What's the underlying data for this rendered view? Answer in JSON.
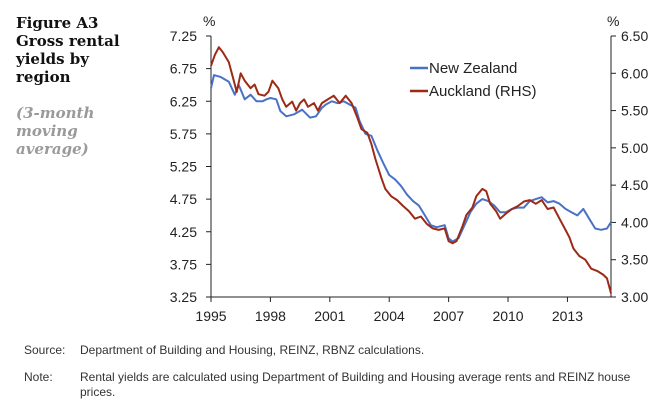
{
  "figure": {
    "title": "Figure A3 Gross rental yields by region",
    "subtitle": "(3-month moving average)"
  },
  "footnotes": {
    "source_label": "Source:",
    "source_text": "Department of Building and Housing, REINZ, RBNZ calculations.",
    "note_label": "Note:",
    "note_text": "Rental yields are calculated using Department of Building and Housing average rents and REINZ house prices."
  },
  "colors": {
    "new_zealand": "#4a72c4",
    "auckland": "#9c2a16",
    "axis": "#222222"
  },
  "chart_data": {
    "type": "line",
    "title": "Gross rental yields by region",
    "left_axis": {
      "unit": "%",
      "ylim": [
        3.25,
        7.25
      ],
      "ticks": [
        "7.25",
        "6.75",
        "6.25",
        "5.75",
        "5.25",
        "4.75",
        "4.25",
        "3.75",
        "3.25"
      ]
    },
    "right_axis": {
      "unit": "%",
      "ylim": [
        3.0,
        6.5
      ],
      "ticks": [
        "6.50",
        "6.00",
        "5.50",
        "5.00",
        "4.50",
        "4.00",
        "3.50",
        "3.00"
      ]
    },
    "xlim": [
      1995,
      2015.2
    ],
    "x_ticks": [
      "1995",
      "1998",
      "2001",
      "2004",
      "2007",
      "2010",
      "2013"
    ],
    "grid": false,
    "legend_position": "top-right",
    "series": [
      {
        "name": "New Zealand",
        "axis": "left",
        "points": [
          [
            1995.0,
            6.45
          ],
          [
            1995.15,
            6.65
          ],
          [
            1995.5,
            6.62
          ],
          [
            1995.9,
            6.55
          ],
          [
            1996.2,
            6.35
          ],
          [
            1996.4,
            6.5
          ],
          [
            1996.7,
            6.28
          ],
          [
            1997.0,
            6.35
          ],
          [
            1997.3,
            6.25
          ],
          [
            1997.6,
            6.25
          ],
          [
            1997.8,
            6.28
          ],
          [
            1998.0,
            6.3
          ],
          [
            1998.3,
            6.28
          ],
          [
            1998.5,
            6.1
          ],
          [
            1998.8,
            6.02
          ],
          [
            1999.2,
            6.05
          ],
          [
            1999.6,
            6.12
          ],
          [
            2000.0,
            6.0
          ],
          [
            2000.3,
            6.02
          ],
          [
            2000.6,
            6.15
          ],
          [
            2000.8,
            6.2
          ],
          [
            2001.1,
            6.25
          ],
          [
            2001.4,
            6.22
          ],
          [
            2001.7,
            6.25
          ],
          [
            2002.0,
            6.2
          ],
          [
            2002.3,
            6.15
          ],
          [
            2002.5,
            5.95
          ],
          [
            2002.8,
            5.75
          ],
          [
            2003.1,
            5.72
          ],
          [
            2003.4,
            5.5
          ],
          [
            2003.7,
            5.3
          ],
          [
            2004.0,
            5.12
          ],
          [
            2004.3,
            5.05
          ],
          [
            2004.6,
            4.95
          ],
          [
            2004.9,
            4.82
          ],
          [
            2005.2,
            4.72
          ],
          [
            2005.5,
            4.65
          ],
          [
            2005.8,
            4.5
          ],
          [
            2006.1,
            4.35
          ],
          [
            2006.4,
            4.32
          ],
          [
            2006.8,
            4.35
          ],
          [
            2007.0,
            4.15
          ],
          [
            2007.2,
            4.1
          ],
          [
            2007.5,
            4.15
          ],
          [
            2007.8,
            4.35
          ],
          [
            2008.1,
            4.55
          ],
          [
            2008.4,
            4.68
          ],
          [
            2008.7,
            4.75
          ],
          [
            2009.0,
            4.72
          ],
          [
            2009.3,
            4.65
          ],
          [
            2009.6,
            4.55
          ],
          [
            2009.9,
            4.55
          ],
          [
            2010.2,
            4.6
          ],
          [
            2010.5,
            4.62
          ],
          [
            2010.8,
            4.62
          ],
          [
            2011.1,
            4.72
          ],
          [
            2011.4,
            4.75
          ],
          [
            2011.7,
            4.78
          ],
          [
            2012.0,
            4.7
          ],
          [
            2012.3,
            4.72
          ],
          [
            2012.6,
            4.68
          ],
          [
            2012.9,
            4.6
          ],
          [
            2013.2,
            4.55
          ],
          [
            2013.5,
            4.5
          ],
          [
            2013.8,
            4.6
          ],
          [
            2014.1,
            4.45
          ],
          [
            2014.4,
            4.3
          ],
          [
            2014.7,
            4.28
          ],
          [
            2015.0,
            4.3
          ],
          [
            2015.2,
            4.4
          ]
        ]
      },
      {
        "name": "Auckland (RHS)",
        "axis": "right",
        "points": [
          [
            1995.0,
            6.1
          ],
          [
            1995.2,
            6.25
          ],
          [
            1995.4,
            6.35
          ],
          [
            1995.6,
            6.28
          ],
          [
            1995.9,
            6.15
          ],
          [
            1996.1,
            5.95
          ],
          [
            1996.3,
            5.75
          ],
          [
            1996.5,
            6.0
          ],
          [
            1996.7,
            5.9
          ],
          [
            1997.0,
            5.8
          ],
          [
            1997.2,
            5.85
          ],
          [
            1997.4,
            5.72
          ],
          [
            1997.7,
            5.7
          ],
          [
            1997.9,
            5.75
          ],
          [
            1998.1,
            5.9
          ],
          [
            1998.4,
            5.8
          ],
          [
            1998.6,
            5.65
          ],
          [
            1998.8,
            5.55
          ],
          [
            1999.1,
            5.62
          ],
          [
            1999.3,
            5.5
          ],
          [
            1999.5,
            5.6
          ],
          [
            1999.7,
            5.65
          ],
          [
            1999.9,
            5.55
          ],
          [
            2000.2,
            5.6
          ],
          [
            2000.4,
            5.5
          ],
          [
            2000.6,
            5.6
          ],
          [
            2000.9,
            5.65
          ],
          [
            2001.2,
            5.7
          ],
          [
            2001.5,
            5.6
          ],
          [
            2001.8,
            5.7
          ],
          [
            2002.1,
            5.6
          ],
          [
            2002.4,
            5.4
          ],
          [
            2002.6,
            5.25
          ],
          [
            2002.9,
            5.2
          ],
          [
            2003.1,
            5.05
          ],
          [
            2003.3,
            4.85
          ],
          [
            2003.6,
            4.6
          ],
          [
            2003.8,
            4.45
          ],
          [
            2004.1,
            4.35
          ],
          [
            2004.4,
            4.3
          ],
          [
            2004.7,
            4.22
          ],
          [
            2005.0,
            4.15
          ],
          [
            2005.3,
            4.05
          ],
          [
            2005.6,
            4.08
          ],
          [
            2005.9,
            3.98
          ],
          [
            2006.2,
            3.92
          ],
          [
            2006.5,
            3.9
          ],
          [
            2006.8,
            3.92
          ],
          [
            2007.0,
            3.75
          ],
          [
            2007.2,
            3.72
          ],
          [
            2007.4,
            3.75
          ],
          [
            2007.7,
            3.95
          ],
          [
            2007.9,
            4.1
          ],
          [
            2008.2,
            4.2
          ],
          [
            2008.4,
            4.35
          ],
          [
            2008.7,
            4.45
          ],
          [
            2008.9,
            4.42
          ],
          [
            2009.1,
            4.25
          ],
          [
            2009.4,
            4.15
          ],
          [
            2009.6,
            4.05
          ],
          [
            2009.9,
            4.12
          ],
          [
            2010.2,
            4.18
          ],
          [
            2010.5,
            4.22
          ],
          [
            2010.8,
            4.28
          ],
          [
            2011.1,
            4.3
          ],
          [
            2011.4,
            4.25
          ],
          [
            2011.7,
            4.3
          ],
          [
            2012.0,
            4.18
          ],
          [
            2012.3,
            4.2
          ],
          [
            2012.6,
            4.05
          ],
          [
            2012.9,
            3.9
          ],
          [
            2013.1,
            3.8
          ],
          [
            2013.3,
            3.65
          ],
          [
            2013.6,
            3.55
          ],
          [
            2013.9,
            3.5
          ],
          [
            2014.2,
            3.38
          ],
          [
            2014.5,
            3.35
          ],
          [
            2014.8,
            3.3
          ],
          [
            2015.0,
            3.25
          ],
          [
            2015.2,
            3.05
          ]
        ]
      }
    ]
  }
}
